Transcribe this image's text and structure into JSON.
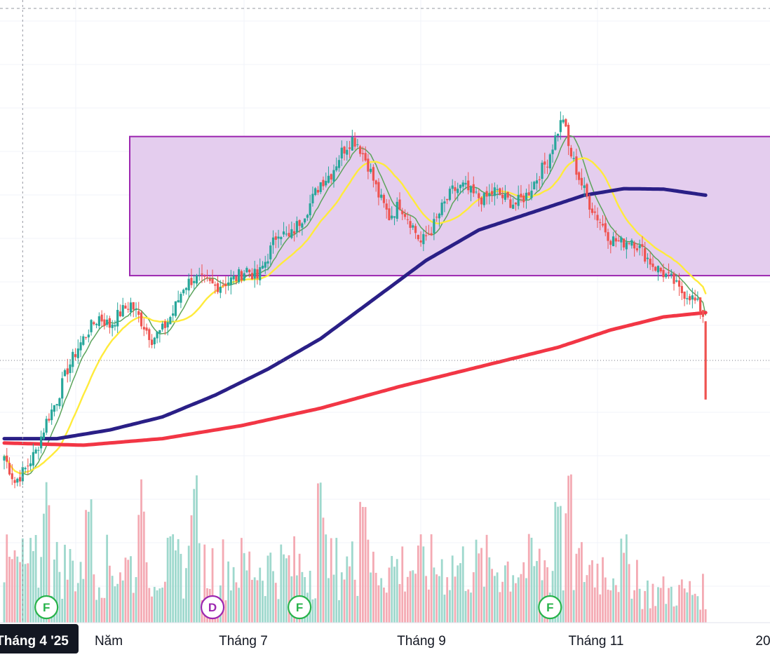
{
  "chart_data": {
    "type": "candlestick",
    "x_axis": {
      "tick_labels": [
        "Tháng 4 '25",
        "Năm",
        "Tháng 7",
        "Tháng 9",
        "Tháng 11",
        "20"
      ],
      "highlighted_label": "Tháng 4 '25"
    },
    "y_axis": {
      "visible_labels": false,
      "price_range_index": [
        0,
        100
      ]
    },
    "colors": {
      "up": "#26a69a",
      "down": "#ef5350",
      "ma_fast": "#5ba45b",
      "ma_20": "#ffeb3b",
      "ma_100": "#2a1f86",
      "ma_200": "#f23645",
      "zone_fill": "#e4cdee",
      "zone_border": "#9c27b0",
      "volume_up": "#9ed8cd",
      "volume_down": "#f4aab3",
      "event_F": "#27b34a",
      "event_D": "#9c27b0"
    },
    "zone": {
      "label": "",
      "price_top": 81.5,
      "price_bottom": 49.5
    },
    "candles": {
      "note": "Daily OHLC in indexed price units, read approximately from the chart",
      "close_path": [
        [
          0,
          8
        ],
        [
          4,
          2
        ],
        [
          8,
          5
        ],
        [
          12,
          9
        ],
        [
          16,
          16
        ],
        [
          20,
          21
        ],
        [
          24,
          28
        ],
        [
          28,
          33
        ],
        [
          32,
          37
        ],
        [
          36,
          40
        ],
        [
          40,
          38
        ],
        [
          44,
          41
        ],
        [
          48,
          43
        ],
        [
          52,
          39
        ],
        [
          56,
          35
        ],
        [
          60,
          37
        ],
        [
          64,
          41
        ],
        [
          68,
          47
        ],
        [
          72,
          49
        ],
        [
          76,
          48
        ],
        [
          80,
          47
        ],
        [
          84,
          48
        ],
        [
          88,
          49
        ],
        [
          92,
          51
        ],
        [
          96,
          49
        ],
        [
          100,
          54
        ],
        [
          104,
          60
        ],
        [
          108,
          58
        ],
        [
          112,
          62
        ],
        [
          116,
          66
        ],
        [
          120,
          71
        ],
        [
          124,
          73
        ],
        [
          128,
          78
        ],
        [
          132,
          81
        ],
        [
          134,
          80
        ],
        [
          138,
          75
        ],
        [
          142,
          68
        ],
        [
          146,
          63
        ],
        [
          150,
          66
        ],
        [
          154,
          62
        ],
        [
          158,
          57
        ],
        [
          162,
          60
        ],
        [
          166,
          65
        ],
        [
          170,
          69
        ],
        [
          174,
          70
        ],
        [
          178,
          68
        ],
        [
          182,
          67
        ],
        [
          186,
          69
        ],
        [
          190,
          67
        ],
        [
          194,
          66
        ],
        [
          198,
          68
        ],
        [
          202,
          72
        ],
        [
          206,
          76
        ],
        [
          210,
          83
        ],
        [
          212,
          86
        ],
        [
          214,
          79
        ],
        [
          218,
          72
        ],
        [
          222,
          66
        ],
        [
          226,
          62
        ],
        [
          230,
          58
        ],
        [
          234,
          57
        ],
        [
          238,
          58
        ],
        [
          242,
          55
        ],
        [
          246,
          52
        ],
        [
          250,
          50
        ],
        [
          254,
          48
        ],
        [
          256,
          46
        ],
        [
          260,
          45
        ],
        [
          264,
          42
        ],
        [
          266,
          39
        ]
      ],
      "last_candle": {
        "open": 39,
        "high": 39,
        "low": 21,
        "close": 21
      }
    },
    "series": [
      {
        "type": "line",
        "ma_period": "fast",
        "color_key": "ma_fast"
      },
      {
        "type": "line",
        "ma_period": "20",
        "color_key": "ma_20"
      },
      {
        "type": "line",
        "ma_period": "100",
        "color_key": "ma_100",
        "points": [
          [
            0,
            12
          ],
          [
            20,
            12
          ],
          [
            40,
            14
          ],
          [
            60,
            17
          ],
          [
            80,
            22
          ],
          [
            100,
            28
          ],
          [
            120,
            35
          ],
          [
            140,
            44
          ],
          [
            160,
            53
          ],
          [
            180,
            60
          ],
          [
            200,
            64
          ],
          [
            220,
            68
          ],
          [
            235,
            69.5
          ],
          [
            250,
            69.4
          ],
          [
            266,
            68
          ]
        ]
      },
      {
        "type": "line",
        "ma_period": "200",
        "color_key": "ma_200",
        "points": [
          [
            0,
            11
          ],
          [
            30,
            10.5
          ],
          [
            60,
            12
          ],
          [
            90,
            15
          ],
          [
            120,
            19
          ],
          [
            150,
            24
          ],
          [
            180,
            28.5
          ],
          [
            210,
            33
          ],
          [
            230,
            37
          ],
          [
            250,
            40
          ],
          [
            266,
            41
          ]
        ]
      }
    ],
    "volume": {
      "note": "Relative volume bars (0-1)",
      "high_days": [
        16,
        32,
        52,
        72,
        120,
        136,
        210,
        214
      ]
    },
    "events": [
      {
        "letter": "F",
        "color_key": "event_F",
        "day": 16
      },
      {
        "letter": "D",
        "color_key": "event_D",
        "day": 79
      },
      {
        "letter": "F",
        "color_key": "event_F",
        "day": 112
      },
      {
        "letter": "F",
        "color_key": "event_F",
        "day": 207
      }
    ],
    "crosshair": {
      "vertical_at_day": 7,
      "horizontal_price": 30
    },
    "grid": true
  }
}
